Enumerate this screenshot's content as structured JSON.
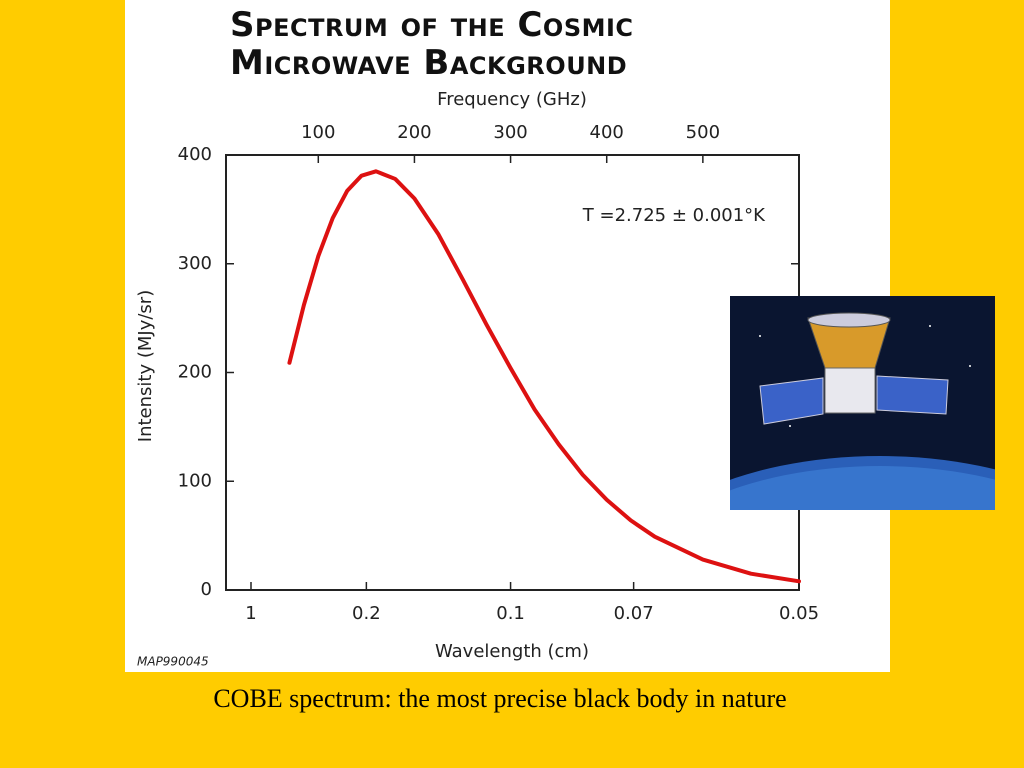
{
  "chart_data": {
    "type": "line",
    "title": "Spectrum of the Cosmic Microwave Background",
    "top_axis_label": "Frequency (GHz)",
    "x_label": "Wavelength (cm)",
    "y_label": "Intensity (MJy/sr)",
    "annotation": "T =2.725 ± 0.001°K",
    "code": "MAP990045",
    "caption": "COBE spectrum:  the most precise black body in nature",
    "x": [
      70,
      85,
      100,
      115,
      130,
      145,
      160,
      180,
      200,
      225,
      250,
      275,
      300,
      325,
      350,
      375,
      400,
      425,
      450,
      500,
      550,
      600
    ],
    "series": [
      {
        "name": "CMB spectrum",
        "color": "#dd1111",
        "values": [
          209,
          262,
          307,
          342,
          367,
          381,
          385,
          378,
          360,
          327,
          286,
          244,
          204,
          166,
          134,
          106,
          83,
          64,
          49,
          28,
          15,
          8
        ]
      }
    ],
    "xlim": [
      4,
      600
    ],
    "xticks": [
      100,
      200,
      300,
      400,
      500
    ],
    "wavelength_ticks": [
      {
        "value": 30,
        "label": "1"
      },
      {
        "value": 150,
        "label": "0.2"
      },
      {
        "value": 300,
        "label": "0.1"
      },
      {
        "value": 428,
        "label": "0.07"
      },
      {
        "value": 600,
        "label": "0.05"
      }
    ],
    "ylim": [
      0,
      400
    ],
    "yticks": [
      0,
      100,
      200,
      300,
      400
    ]
  }
}
